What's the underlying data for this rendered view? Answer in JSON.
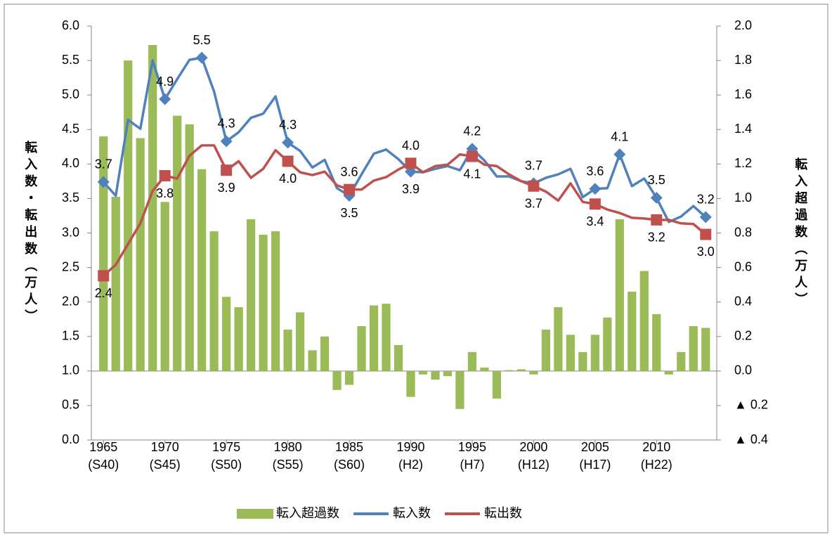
{
  "chart_data": {
    "type": "bar",
    "y_axis_label": "転入数・転出数（万人）",
    "y2_axis_label": "転入超過数（万人）",
    "categories": [
      "1965",
      null,
      null,
      null,
      null,
      "1970",
      null,
      null,
      null,
      null,
      "1975",
      null,
      null,
      null,
      null,
      "1980",
      null,
      null,
      null,
      null,
      "1985",
      null,
      null,
      null,
      null,
      "1990",
      null,
      null,
      null,
      null,
      "1995",
      null,
      null,
      null,
      null,
      "2000",
      null,
      null,
      null,
      null,
      "2005",
      null,
      null,
      null,
      null,
      "2010",
      null,
      null,
      null,
      null
    ],
    "category_sublabels": [
      "(S40)",
      null,
      null,
      null,
      null,
      "(S45)",
      null,
      null,
      null,
      null,
      "(S50)",
      null,
      null,
      null,
      null,
      "(S55)",
      null,
      null,
      null,
      null,
      "(S60)",
      null,
      null,
      null,
      null,
      "(H2)",
      null,
      null,
      null,
      null,
      "(H7)",
      null,
      null,
      null,
      null,
      "(H12)",
      null,
      null,
      null,
      null,
      "(H17)",
      null,
      null,
      null,
      null,
      "(H22)",
      null,
      null,
      null,
      null
    ],
    "series": [
      {
        "name": "転入超過数",
        "type": "bar",
        "axis": "y2",
        "color": "#9bbb59",
        "values": [
          1.36,
          1.01,
          1.8,
          1.35,
          1.89,
          0.98,
          1.48,
          1.43,
          1.17,
          0.81,
          0.43,
          0.37,
          0.88,
          0.79,
          0.81,
          0.24,
          0.34,
          0.12,
          0.2,
          -0.11,
          -0.08,
          0.26,
          0.38,
          0.39,
          0.15,
          -0.15,
          -0.02,
          -0.05,
          -0.03,
          -0.22,
          0.11,
          0.02,
          -0.16,
          0.005,
          0.01,
          -0.02,
          0.24,
          0.37,
          0.21,
          0.11,
          0.21,
          0.31,
          0.88,
          0.46,
          0.58,
          0.33,
          -0.02,
          0.11,
          0.26,
          0.25
        ]
      },
      {
        "name": "転入数",
        "type": "line",
        "axis": "y",
        "color": "#4f81bd",
        "values": [
          3.74,
          3.54,
          4.64,
          4.51,
          5.5,
          4.94,
          5.23,
          5.51,
          5.54,
          5.05,
          4.33,
          4.46,
          4.67,
          4.73,
          4.98,
          4.31,
          4.19,
          3.95,
          4.06,
          3.65,
          3.54,
          3.85,
          4.15,
          4.21,
          4.07,
          3.89,
          3.88,
          3.93,
          3.97,
          3.91,
          4.22,
          4.05,
          3.82,
          3.82,
          3.75,
          3.72,
          3.8,
          3.85,
          3.93,
          3.52,
          3.64,
          3.65,
          4.14,
          3.68,
          3.79,
          3.51,
          3.16,
          3.24,
          3.39,
          3.23
        ],
        "value_labels": [
          "3.7",
          null,
          null,
          null,
          null,
          "4.9",
          null,
          null,
          "5.5",
          null,
          "4.3",
          null,
          null,
          null,
          null,
          "4.3",
          null,
          null,
          null,
          null,
          "3.5",
          null,
          null,
          null,
          null,
          "3.9",
          null,
          null,
          null,
          null,
          "4.2",
          null,
          null,
          null,
          null,
          "3.7",
          null,
          null,
          null,
          null,
          "3.6",
          null,
          "4.1",
          null,
          null,
          "3.5",
          null,
          null,
          null,
          "3.2"
        ]
      },
      {
        "name": "転出数",
        "type": "line",
        "axis": "y",
        "color": "#c0504d",
        "values": [
          2.38,
          2.54,
          2.84,
          3.14,
          3.61,
          3.83,
          3.79,
          4.12,
          4.27,
          4.27,
          3.91,
          4.04,
          3.8,
          3.93,
          4.2,
          4.04,
          3.88,
          3.84,
          3.89,
          3.69,
          3.63,
          3.63,
          3.76,
          3.81,
          3.92,
          4.01,
          3.88,
          3.97,
          3.99,
          4.14,
          4.11,
          3.99,
          3.97,
          3.85,
          3.75,
          3.68,
          3.6,
          3.47,
          3.72,
          3.45,
          3.42,
          3.34,
          3.29,
          3.22,
          3.21,
          3.19,
          3.19,
          3.14,
          3.13,
          2.98
        ],
        "value_labels": [
          "2.4",
          null,
          null,
          null,
          null,
          "3.8",
          null,
          null,
          null,
          null,
          "3.9",
          null,
          null,
          null,
          null,
          "4.0",
          null,
          null,
          null,
          null,
          "3.6",
          null,
          null,
          null,
          null,
          "4.0",
          null,
          null,
          null,
          null,
          "4.1",
          null,
          null,
          null,
          null,
          "3.7",
          null,
          null,
          null,
          null,
          "3.4",
          null,
          null,
          null,
          null,
          "3.2",
          null,
          null,
          null,
          "3.0"
        ]
      }
    ],
    "ylim": [
      0,
      6
    ],
    "yticks": [
      {
        "value": 0,
        "label": "0.0"
      },
      0.5,
      {
        "value": 1,
        "label": "1.0"
      },
      1.5,
      {
        "value": 2,
        "label": "2.0"
      },
      2.5,
      {
        "value": 3,
        "label": "3.0"
      },
      3.5,
      {
        "value": 4,
        "label": "4.0"
      },
      4.5,
      {
        "value": 5,
        "label": "5.0"
      },
      5.5,
      {
        "value": 6,
        "label": "6.0"
      }
    ],
    "y2lim": [
      -0.4,
      2.0
    ],
    "y2ticks": [
      {
        "value": -0.4,
        "label": "▲ 0.4"
      },
      {
        "value": -0.2,
        "label": "▲ 0.2"
      },
      {
        "value": 0,
        "label": "0.0"
      },
      0.2,
      0.4,
      0.6,
      0.8,
      {
        "value": 1,
        "label": "1.0"
      },
      1.2,
      1.4,
      1.6,
      1.8,
      {
        "value": 2,
        "label": "2.0"
      }
    ],
    "legend": "bottom"
  }
}
